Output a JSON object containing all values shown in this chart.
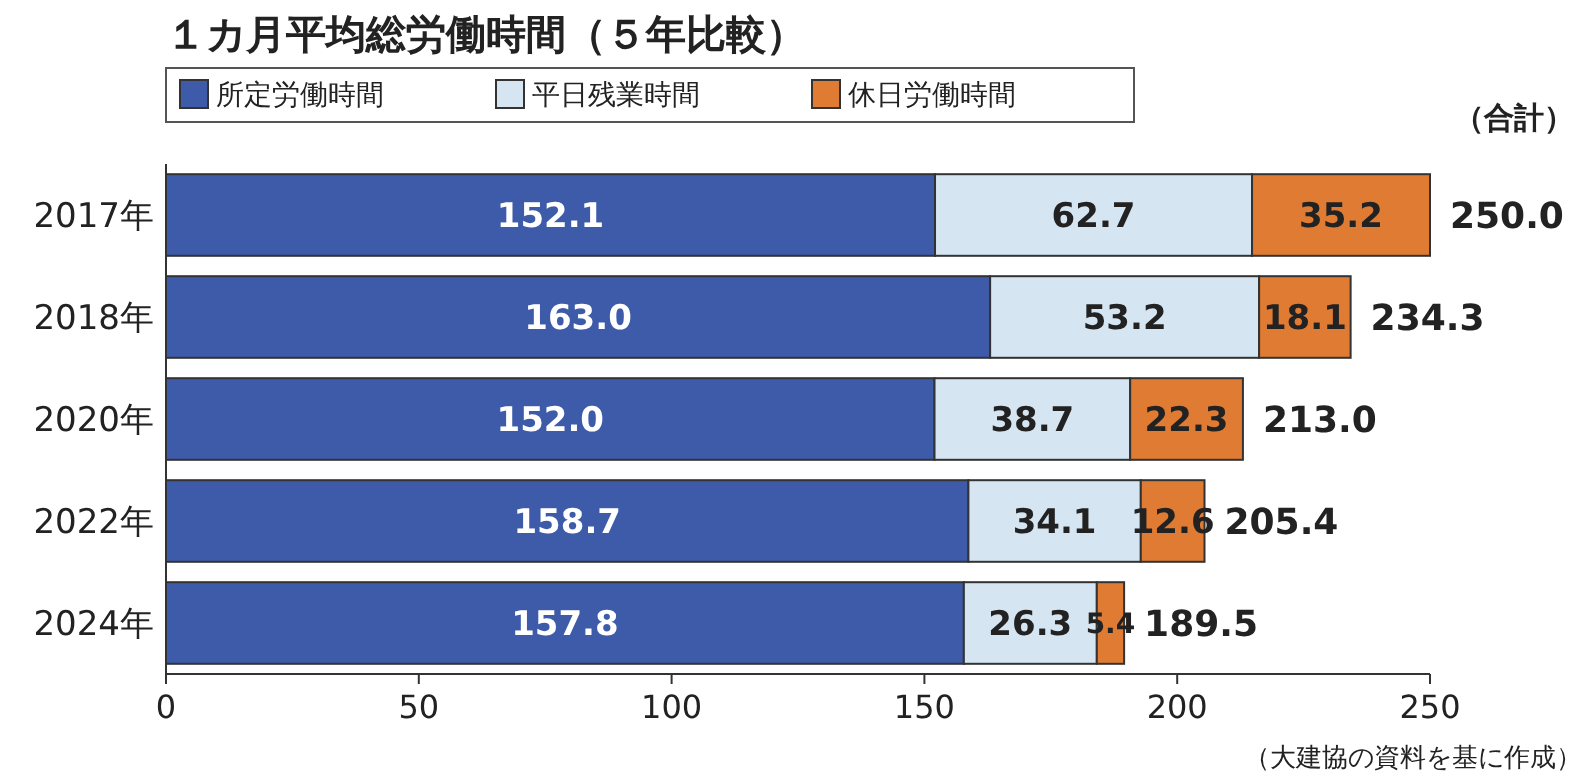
{
  "chart_data": {
    "type": "bar",
    "orientation": "horizontal",
    "stacked": true,
    "title": "１カ月平均総労働時間（５年比較）",
    "categories": [
      "2017年",
      "2018年",
      "2020年",
      "2022年",
      "2024年"
    ],
    "series": [
      {
        "name": "所定労働時間",
        "color": "#3d5ba9",
        "values": [
          152.1,
          163.0,
          152.0,
          158.7,
          157.8
        ],
        "value_labels": [
          "152.1",
          "163.0",
          "152.0",
          "158.7",
          "157.8"
        ]
      },
      {
        "name": "平日残業時間",
        "color": "#d5e5f1",
        "values": [
          62.7,
          53.2,
          38.7,
          34.1,
          26.3
        ],
        "value_labels": [
          "62.7",
          "53.2",
          "38.7",
          "34.1",
          "26.3"
        ]
      },
      {
        "name": "休日労働時間",
        "color": "#e07b33",
        "values": [
          35.2,
          18.1,
          22.3,
          12.6,
          5.4
        ],
        "value_labels": [
          "35.2",
          "18.1",
          "22.3",
          "12.6",
          "5.4"
        ]
      }
    ],
    "totals": [
      "250.0",
      "234.3",
      "213.0",
      "205.4",
      "189.5"
    ],
    "xlim": [
      0,
      250
    ],
    "xticks": [
      0,
      50,
      100,
      150,
      200,
      250
    ],
    "legend": "top left",
    "grid": false,
    "annotations": [
      "（合計）",
      "（大建協の資料を基に作成）"
    ]
  }
}
